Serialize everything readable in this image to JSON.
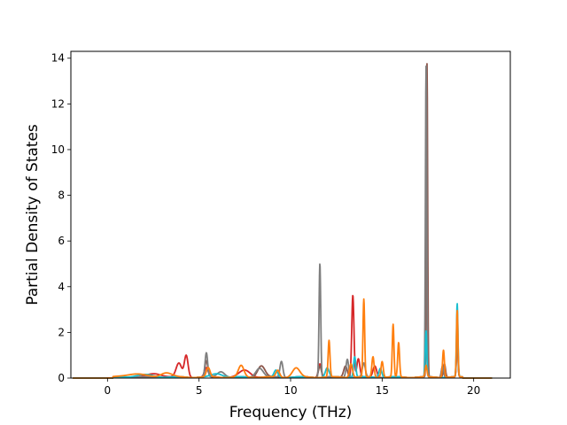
{
  "chart_data": {
    "type": "line",
    "title": "",
    "xlabel": "Frequency (THz)",
    "ylabel": "Partial Density of States",
    "xlim": [
      -2.0,
      22.0
    ],
    "ylim": [
      0,
      14.3
    ],
    "xticks": [
      0,
      5,
      10,
      15,
      20
    ],
    "yticks": [
      0,
      2,
      4,
      6,
      8,
      10,
      12,
      14
    ],
    "grid": false,
    "legend": "none",
    "series": [
      {
        "color": "#d62728",
        "peaks": [
          [
            2.6,
            0.15,
            0.4
          ],
          [
            3.9,
            0.6,
            0.15
          ],
          [
            4.3,
            0.95,
            0.1
          ],
          [
            5.4,
            0.4,
            0.1
          ],
          [
            7.5,
            0.3,
            0.3
          ],
          [
            11.6,
            0.6,
            0.08
          ],
          [
            13.4,
            3.6,
            0.06
          ],
          [
            13.7,
            0.8,
            0.08
          ],
          [
            14.6,
            0.5,
            0.1
          ],
          [
            17.4,
            2.0,
            0.04
          ],
          [
            18.3,
            0.5,
            0.06
          ],
          [
            19.1,
            2.1,
            0.04
          ]
        ]
      },
      {
        "color": "#8c564b",
        "peaks": [
          [
            5.4,
            0.7,
            0.08
          ],
          [
            8.4,
            0.5,
            0.2
          ],
          [
            11.6,
            0.5,
            0.08
          ],
          [
            13.0,
            0.5,
            0.1
          ],
          [
            17.45,
            13.7,
            0.035
          ],
          [
            18.4,
            0.6,
            0.06
          ],
          [
            19.1,
            1.6,
            0.04
          ]
        ]
      },
      {
        "color": "#7f7f7f",
        "peaks": [
          [
            5.4,
            1.05,
            0.07
          ],
          [
            6.2,
            0.25,
            0.2
          ],
          [
            8.3,
            0.4,
            0.2
          ],
          [
            9.5,
            0.7,
            0.08
          ],
          [
            11.6,
            5.0,
            0.045
          ],
          [
            13.1,
            0.8,
            0.07
          ],
          [
            14.0,
            0.6,
            0.08
          ],
          [
            17.4,
            13.6,
            0.035
          ],
          [
            18.3,
            0.5,
            0.06
          ],
          [
            19.1,
            2.0,
            0.04
          ]
        ]
      },
      {
        "color": "#17becf",
        "peaks": [
          [
            2.0,
            0.1,
            0.5
          ],
          [
            6.0,
            0.15,
            0.3
          ],
          [
            9.2,
            0.3,
            0.1
          ],
          [
            12.0,
            0.4,
            0.1
          ],
          [
            13.5,
            0.9,
            0.06
          ],
          [
            14.9,
            0.4,
            0.08
          ],
          [
            17.4,
            2.0,
            0.04
          ],
          [
            19.1,
            3.2,
            0.04
          ]
        ]
      },
      {
        "color": "#ff7f0e",
        "peaks": [
          [
            1.5,
            0.15,
            0.5
          ],
          [
            3.2,
            0.2,
            0.3
          ],
          [
            5.5,
            0.4,
            0.1
          ],
          [
            7.3,
            0.5,
            0.15
          ],
          [
            9.3,
            0.3,
            0.1
          ],
          [
            10.3,
            0.4,
            0.2
          ],
          [
            12.1,
            1.6,
            0.05
          ],
          [
            13.3,
            0.6,
            0.08
          ],
          [
            14.0,
            3.4,
            0.045
          ],
          [
            14.5,
            0.9,
            0.06
          ],
          [
            15.0,
            0.7,
            0.06
          ],
          [
            15.6,
            2.3,
            0.045
          ],
          [
            15.9,
            1.5,
            0.05
          ],
          [
            17.4,
            0.5,
            0.05
          ],
          [
            18.35,
            1.2,
            0.05
          ],
          [
            19.1,
            2.9,
            0.04
          ]
        ]
      }
    ]
  }
}
